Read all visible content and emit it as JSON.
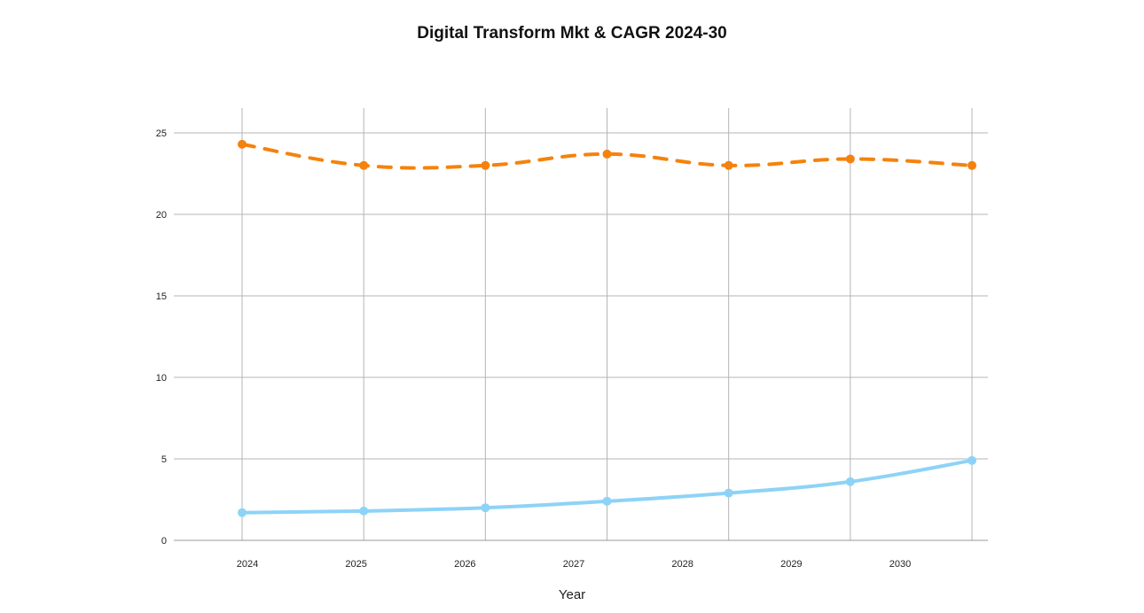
{
  "chart_data": {
    "type": "line",
    "title": "Digital Transform Mkt & CAGR 2024-30",
    "xlabel": "Year",
    "ylabel": "",
    "categories": [
      "2024",
      "2025",
      "2026",
      "2027",
      "2028",
      "2029",
      "2030"
    ],
    "ylim": [
      0,
      25
    ],
    "yticks": [
      0,
      5,
      10,
      15,
      20,
      25
    ],
    "grid": true,
    "legend": "none",
    "series": [
      {
        "values": [
          24.3,
          23.0,
          23.0,
          23.7,
          23.0,
          23.4,
          23.0
        ],
        "color": "#f5820d",
        "style": "dashed"
      },
      {
        "values": [
          1.7,
          1.8,
          2.0,
          2.4,
          2.9,
          3.6,
          4.9
        ],
        "color": "#8dd3f7",
        "style": "solid"
      }
    ]
  }
}
